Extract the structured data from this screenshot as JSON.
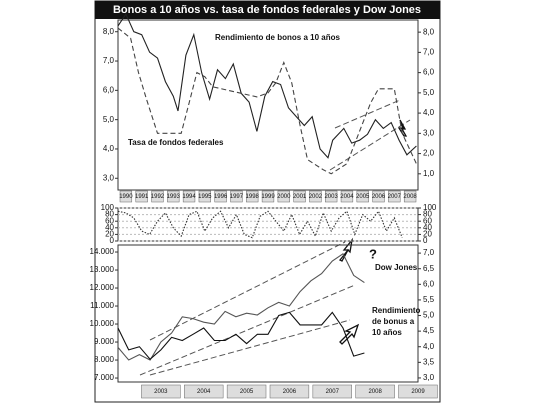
{
  "chart_data": [
    {
      "type": "line",
      "title": "Bonos a 10 años vs. tasa de fondos federales y Dow Jones",
      "xlim": [
        1990,
        2009
      ],
      "xticks": [
        1990,
        1991,
        1992,
        1993,
        1994,
        1995,
        1996,
        1997,
        1998,
        1999,
        2000,
        2001,
        2002,
        2003,
        2004,
        2005,
        2006,
        2007,
        2008
      ],
      "ylim": [
        2.6,
        8.4
      ],
      "yticks": [
        {
          "value": 3,
          "label": "3,0"
        },
        {
          "value": 4,
          "label": "4,0"
        },
        {
          "value": 5,
          "label": "5,0"
        },
        {
          "value": 6,
          "label": "6,0"
        },
        {
          "value": 7,
          "label": "7,0"
        },
        {
          "value": 8,
          "label": "8,0"
        }
      ],
      "y2lim": [
        0.2,
        8.6
      ],
      "y2ticks": [
        {
          "value": 1,
          "label": "1,0"
        },
        {
          "value": 2,
          "label": "2,0"
        },
        {
          "value": 3,
          "label": "3,0"
        },
        {
          "value": 4,
          "label": "4,0"
        },
        {
          "value": 5,
          "label": "5,0"
        },
        {
          "value": 6,
          "label": "6,0"
        },
        {
          "value": 7,
          "label": "7,0"
        },
        {
          "value": 8,
          "label": "8,0"
        }
      ],
      "series": [
        {
          "name": "Rendimiento de bonos a 10 años",
          "color": "#222222",
          "style": "solid",
          "x": [
            1990,
            1990.5,
            1991,
            1991.5,
            1992,
            1992.5,
            1993,
            1993.5,
            1993.8,
            1994.3,
            1994.8,
            1995.3,
            1995.8,
            1996.3,
            1996.8,
            1997.3,
            1997.8,
            1998.3,
            1998.8,
            1999.3,
            1999.8,
            2000.3,
            2000.8,
            2001.3,
            2001.8,
            2002.3,
            2002.8,
            2003.3,
            2003.6,
            2004.3,
            2004.8,
            2005.3,
            2005.8,
            2006.3,
            2006.8,
            2007.3,
            2007.8,
            2008.3,
            2008.9
          ],
          "values": [
            8.2,
            8.6,
            8.0,
            7.9,
            7.3,
            7.1,
            6.3,
            5.8,
            5.3,
            7.2,
            7.9,
            6.6,
            5.7,
            6.7,
            6.4,
            6.9,
            5.9,
            5.6,
            4.6,
            5.8,
            6.3,
            6.2,
            5.4,
            5.1,
            4.8,
            5.1,
            4.0,
            3.7,
            4.3,
            4.7,
            4.2,
            4.3,
            4.5,
            5.0,
            4.7,
            4.9,
            4.3,
            3.8,
            4.1
          ]
        },
        {
          "name": "Tasa de fondos federales",
          "color": "#444444",
          "style": "dashed",
          "axis": "y2",
          "x": [
            1990,
            1990.8,
            1991.3,
            1991.8,
            1992.5,
            1994,
            1994.5,
            1995,
            1995.5,
            1996,
            1998.8,
            1999.5,
            2000,
            2000.5,
            2001,
            2001.5,
            2002,
            2003,
            2003.5,
            2004.5,
            2005,
            2005.5,
            2006,
            2006.5,
            2007.5,
            2008,
            2008.9
          ],
          "values": [
            8.2,
            7.7,
            6.0,
            4.7,
            3.0,
            3.0,
            4.5,
            6.0,
            5.8,
            5.3,
            4.8,
            5.0,
            5.5,
            6.5,
            5.5,
            3.5,
            1.7,
            1.2,
            1.0,
            1.5,
            2.5,
            3.5,
            4.5,
            5.2,
            5.2,
            3.0,
            1.5
          ]
        }
      ],
      "annotations": [
        {
          "text": "Rendimiento de bonos a 10 años"
        },
        {
          "text": "Tasa de fondos federales"
        }
      ]
    },
    {
      "type": "line",
      "xlim": [
        1990,
        2009
      ],
      "ylim": [
        0,
        100
      ],
      "yticks": [
        0,
        20,
        40,
        60,
        80,
        100
      ],
      "series": [
        {
          "color": "#333333",
          "style": "dotted",
          "x": [
            1990,
            1990.5,
            1991,
            1991.5,
            1992,
            1992.5,
            1993,
            1993.5,
            1994,
            1994.5,
            1995,
            1995.5,
            1996,
            1996.5,
            1997,
            1997.5,
            1998,
            1998.5,
            1999,
            1999.5,
            2000,
            2000.5,
            2001,
            2001.5,
            2002,
            2002.5,
            2003,
            2003.5,
            2004,
            2004.5,
            2005,
            2005.5,
            2006,
            2006.5,
            2007,
            2007.5,
            2008
          ],
          "values": [
            90,
            85,
            70,
            30,
            20,
            60,
            85,
            40,
            15,
            80,
            90,
            30,
            70,
            90,
            40,
            80,
            20,
            10,
            75,
            90,
            60,
            30,
            80,
            20,
            60,
            15,
            85,
            30,
            70,
            90,
            20,
            80,
            60,
            90,
            30,
            70,
            10
          ]
        }
      ]
    },
    {
      "type": "line",
      "xlim": [
        2002.5,
        2009.5
      ],
      "xticks": [
        2003,
        2004,
        2005,
        2006,
        2007,
        2008,
        2009
      ],
      "ylim": [
        6780,
        14390
      ],
      "yticks": [
        {
          "value": 7000,
          "label": "7.000"
        },
        {
          "value": 8000,
          "label": "8.000"
        },
        {
          "value": 9000,
          "label": "9.000"
        },
        {
          "value": 10000,
          "label": "10.000"
        },
        {
          "value": 11000,
          "label": "11.000"
        },
        {
          "value": 12000,
          "label": "12.000"
        },
        {
          "value": 13000,
          "label": "13.000"
        },
        {
          "value": 14000,
          "label": "14.000"
        }
      ],
      "y2lim": [
        2.87,
        7.26
      ],
      "y2ticks": [
        {
          "value": 3,
          "label": "3,0"
        },
        {
          "value": 3.5,
          "label": "3,5"
        },
        {
          "value": 4,
          "label": "4,0"
        },
        {
          "value": 4.5,
          "label": "4,5"
        },
        {
          "value": 5,
          "label": "5,0"
        },
        {
          "value": 5.5,
          "label": "5,5"
        },
        {
          "value": 6,
          "label": "6,0"
        },
        {
          "value": 6.5,
          "label": "6,5"
        },
        {
          "value": 7,
          "label": "7,0"
        }
      ],
      "series": [
        {
          "name": "Dow Jones",
          "color": "#555555",
          "style": "solid",
          "x": [
            2002.5,
            2002.75,
            2003,
            2003.25,
            2003.5,
            2003.75,
            2004,
            2004.25,
            2004.5,
            2004.75,
            2005,
            2005.25,
            2005.5,
            2005.75,
            2006,
            2006.25,
            2006.5,
            2006.75,
            2007,
            2007.25,
            2007.5,
            2007.75,
            2008,
            2008.25
          ],
          "values": [
            8700,
            8000,
            8300,
            8000,
            9000,
            9500,
            10400,
            10300,
            10100,
            10000,
            10700,
            10400,
            10600,
            10500,
            10900,
            11200,
            11000,
            11800,
            12400,
            12800,
            13500,
            13900,
            12700,
            12300
          ]
        },
        {
          "name": "Rendimiento de bonus a 10 años",
          "color": "#111111",
          "style": "solid",
          "axis": "y2",
          "x": [
            2002.5,
            2002.75,
            2003,
            2003.25,
            2003.5,
            2003.75,
            2004,
            2004.25,
            2004.5,
            2004.75,
            2005,
            2005.25,
            2005.5,
            2005.75,
            2006,
            2006.25,
            2006.5,
            2006.75,
            2007,
            2007.25,
            2007.5,
            2007.75,
            2008,
            2008.25
          ],
          "values": [
            4.6,
            3.9,
            4.0,
            3.6,
            3.9,
            4.3,
            4.2,
            4.4,
            4.6,
            4.2,
            4.2,
            4.4,
            4.1,
            4.4,
            4.4,
            5.0,
            5.1,
            4.7,
            4.7,
            4.7,
            5.1,
            4.6,
            3.7,
            3.8
          ]
        }
      ],
      "annotations": [
        {
          "text": "?"
        },
        {
          "text": "Dow Jones"
        },
        {
          "text": "Rendimiento"
        },
        {
          "text": "de bonus a"
        },
        {
          "text": "10 años"
        }
      ]
    }
  ]
}
